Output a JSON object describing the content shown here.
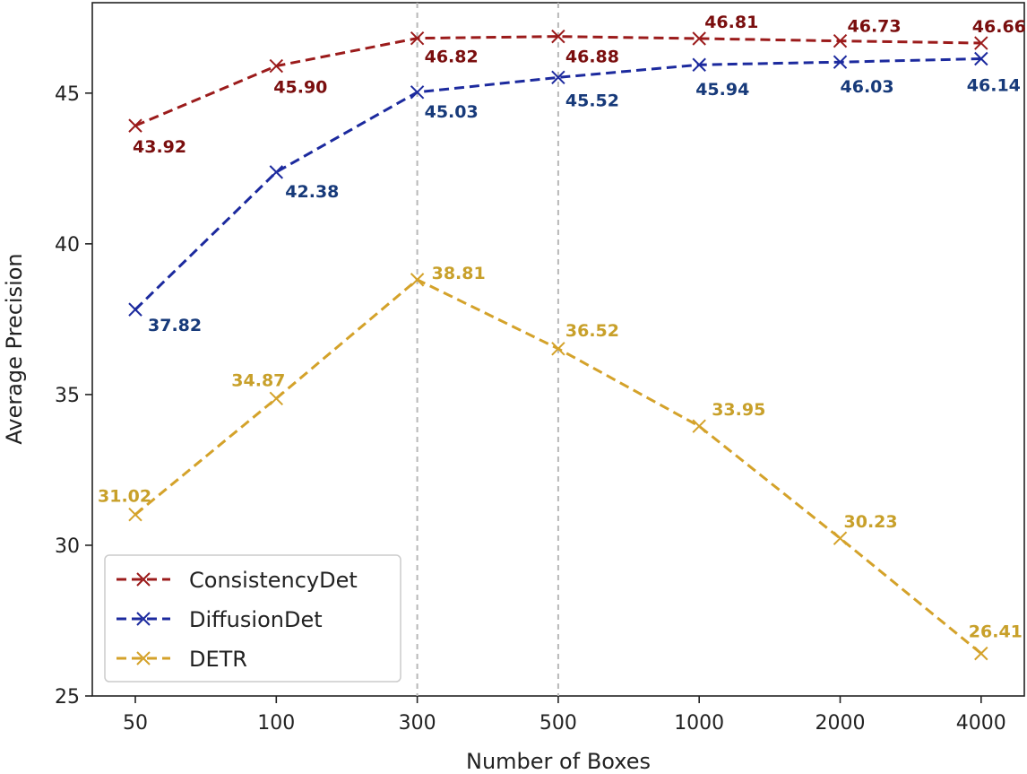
{
  "chart_data": {
    "type": "line",
    "xlabel": "Number of Boxes",
    "ylabel": "Average Precision",
    "categories": [
      "50",
      "100",
      "300",
      "500",
      "1000",
      "2000",
      "4000"
    ],
    "ylim": [
      25,
      48
    ],
    "yticks": [
      25,
      30,
      35,
      40,
      45
    ],
    "grid": false,
    "reference_lines_at": [
      "300",
      "500"
    ],
    "legend_position": "lower-left",
    "series": [
      {
        "name": "ConsistencyDet",
        "color": "#9b1b1b",
        "label_color": "#7a0e0e",
        "marker": "x",
        "line_style": "dashed",
        "values": [
          43.92,
          45.9,
          46.82,
          46.88,
          46.81,
          46.73,
          46.66
        ],
        "labels": [
          "43.92",
          "45.90",
          "46.82",
          "46.88",
          "46.81",
          "46.73",
          "46.66"
        ]
      },
      {
        "name": "DiffusionDet",
        "color": "#1c2a9e",
        "label_color": "#173a7a",
        "marker": "x",
        "line_style": "dashed",
        "values": [
          37.82,
          42.38,
          45.03,
          45.52,
          45.94,
          46.03,
          46.14
        ],
        "labels": [
          "37.82",
          "42.38",
          "45.03",
          "45.52",
          "45.94",
          "46.03",
          "46.14"
        ]
      },
      {
        "name": "DETR",
        "color": "#d4a22a",
        "label_color": "#c8a02a",
        "marker": "x",
        "line_style": "dashed",
        "values": [
          31.02,
          34.87,
          38.81,
          36.52,
          33.95,
          30.23,
          26.41
        ],
        "labels": [
          "31.02",
          "34.87",
          "38.81",
          "36.52",
          "33.95",
          "30.23",
          "26.41"
        ]
      }
    ]
  }
}
